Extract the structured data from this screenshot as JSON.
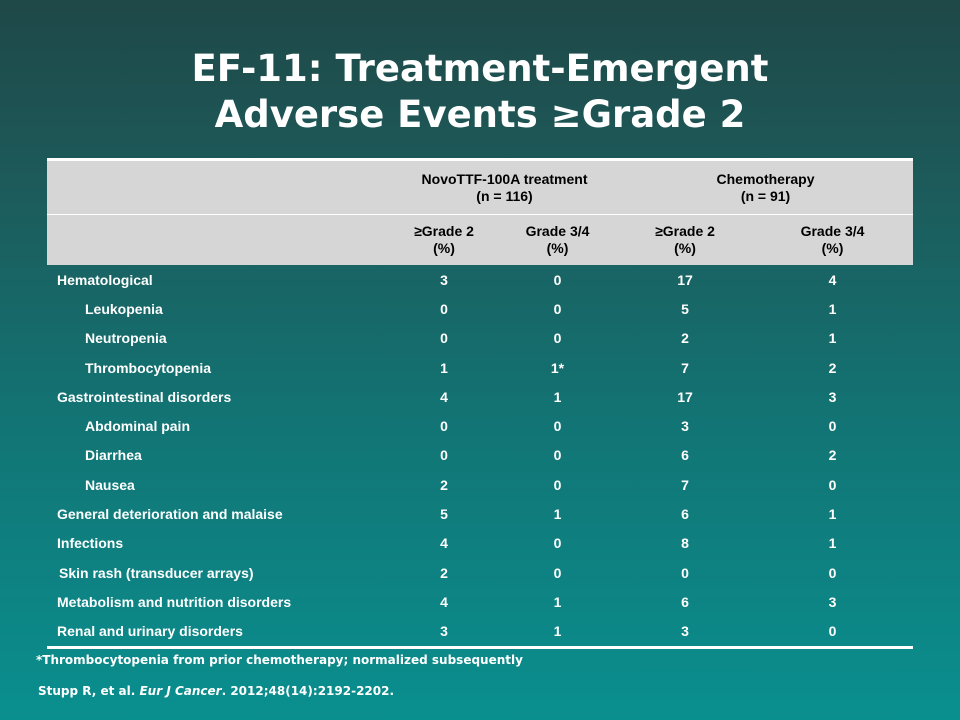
{
  "title": {
    "line1": "EF-11: Treatment-Emergent",
    "line2": "Adverse Events ≥Grade 2"
  },
  "table": {
    "group_headers": [
      {
        "line1": "NovoTTF-100A treatment",
        "line2": "(n = 116)"
      },
      {
        "line1": "Chemotherapy",
        "line2": "(n = 91)"
      }
    ],
    "sub_headers": [
      {
        "line1": "≥Grade 2",
        "line2": "(%)"
      },
      {
        "line1": "Grade 3/4",
        "line2": "(%)"
      },
      {
        "line1": "≥Grade 2",
        "line2": "(%)"
      },
      {
        "line1": "Grade 3/4",
        "line2": "(%)"
      }
    ],
    "rows": [
      {
        "label": "Hematological",
        "values": [
          "3",
          "0",
          "17",
          "4"
        ]
      },
      {
        "label": "Leukopenia",
        "values": [
          "0",
          "0",
          "5",
          "1"
        ]
      },
      {
        "label": "Neutropenia",
        "values": [
          "0",
          "0",
          "2",
          "1"
        ]
      },
      {
        "label": "Thrombocytopenia",
        "values": [
          "1",
          "1*",
          "7",
          "2"
        ]
      },
      {
        "label": "Gastrointestinal disorders",
        "values": [
          "4",
          "1",
          "17",
          "3"
        ]
      },
      {
        "label": "Abdominal pain",
        "values": [
          "0",
          "0",
          "3",
          "0"
        ]
      },
      {
        "label": "Diarrhea",
        "values": [
          "0",
          "0",
          "6",
          "2"
        ]
      },
      {
        "label": "Nausea",
        "values": [
          "2",
          "0",
          "7",
          "0"
        ]
      },
      {
        "label": "General deterioration and malaise",
        "values": [
          "5",
          "1",
          "6",
          "1"
        ]
      },
      {
        "label": "Infections",
        "values": [
          "4",
          "0",
          "8",
          "1"
        ]
      },
      {
        "label": "Skin rash (transducer arrays)",
        "values": [
          "2",
          "0",
          "0",
          "0"
        ]
      },
      {
        "label": "Metabolism and nutrition disorders",
        "values": [
          "4",
          "1",
          "6",
          "3"
        ]
      },
      {
        "label": "Renal and urinary disorders",
        "values": [
          "3",
          "1",
          "3",
          "0"
        ]
      }
    ]
  },
  "footnote": "*Thrombocytopenia from prior chemotherapy; normalized subsequently",
  "citation": {
    "authors": "Stupp R, et al. ",
    "journal": "Eur J Cancer",
    "details": ". 2012;48(14):2192-2202."
  }
}
